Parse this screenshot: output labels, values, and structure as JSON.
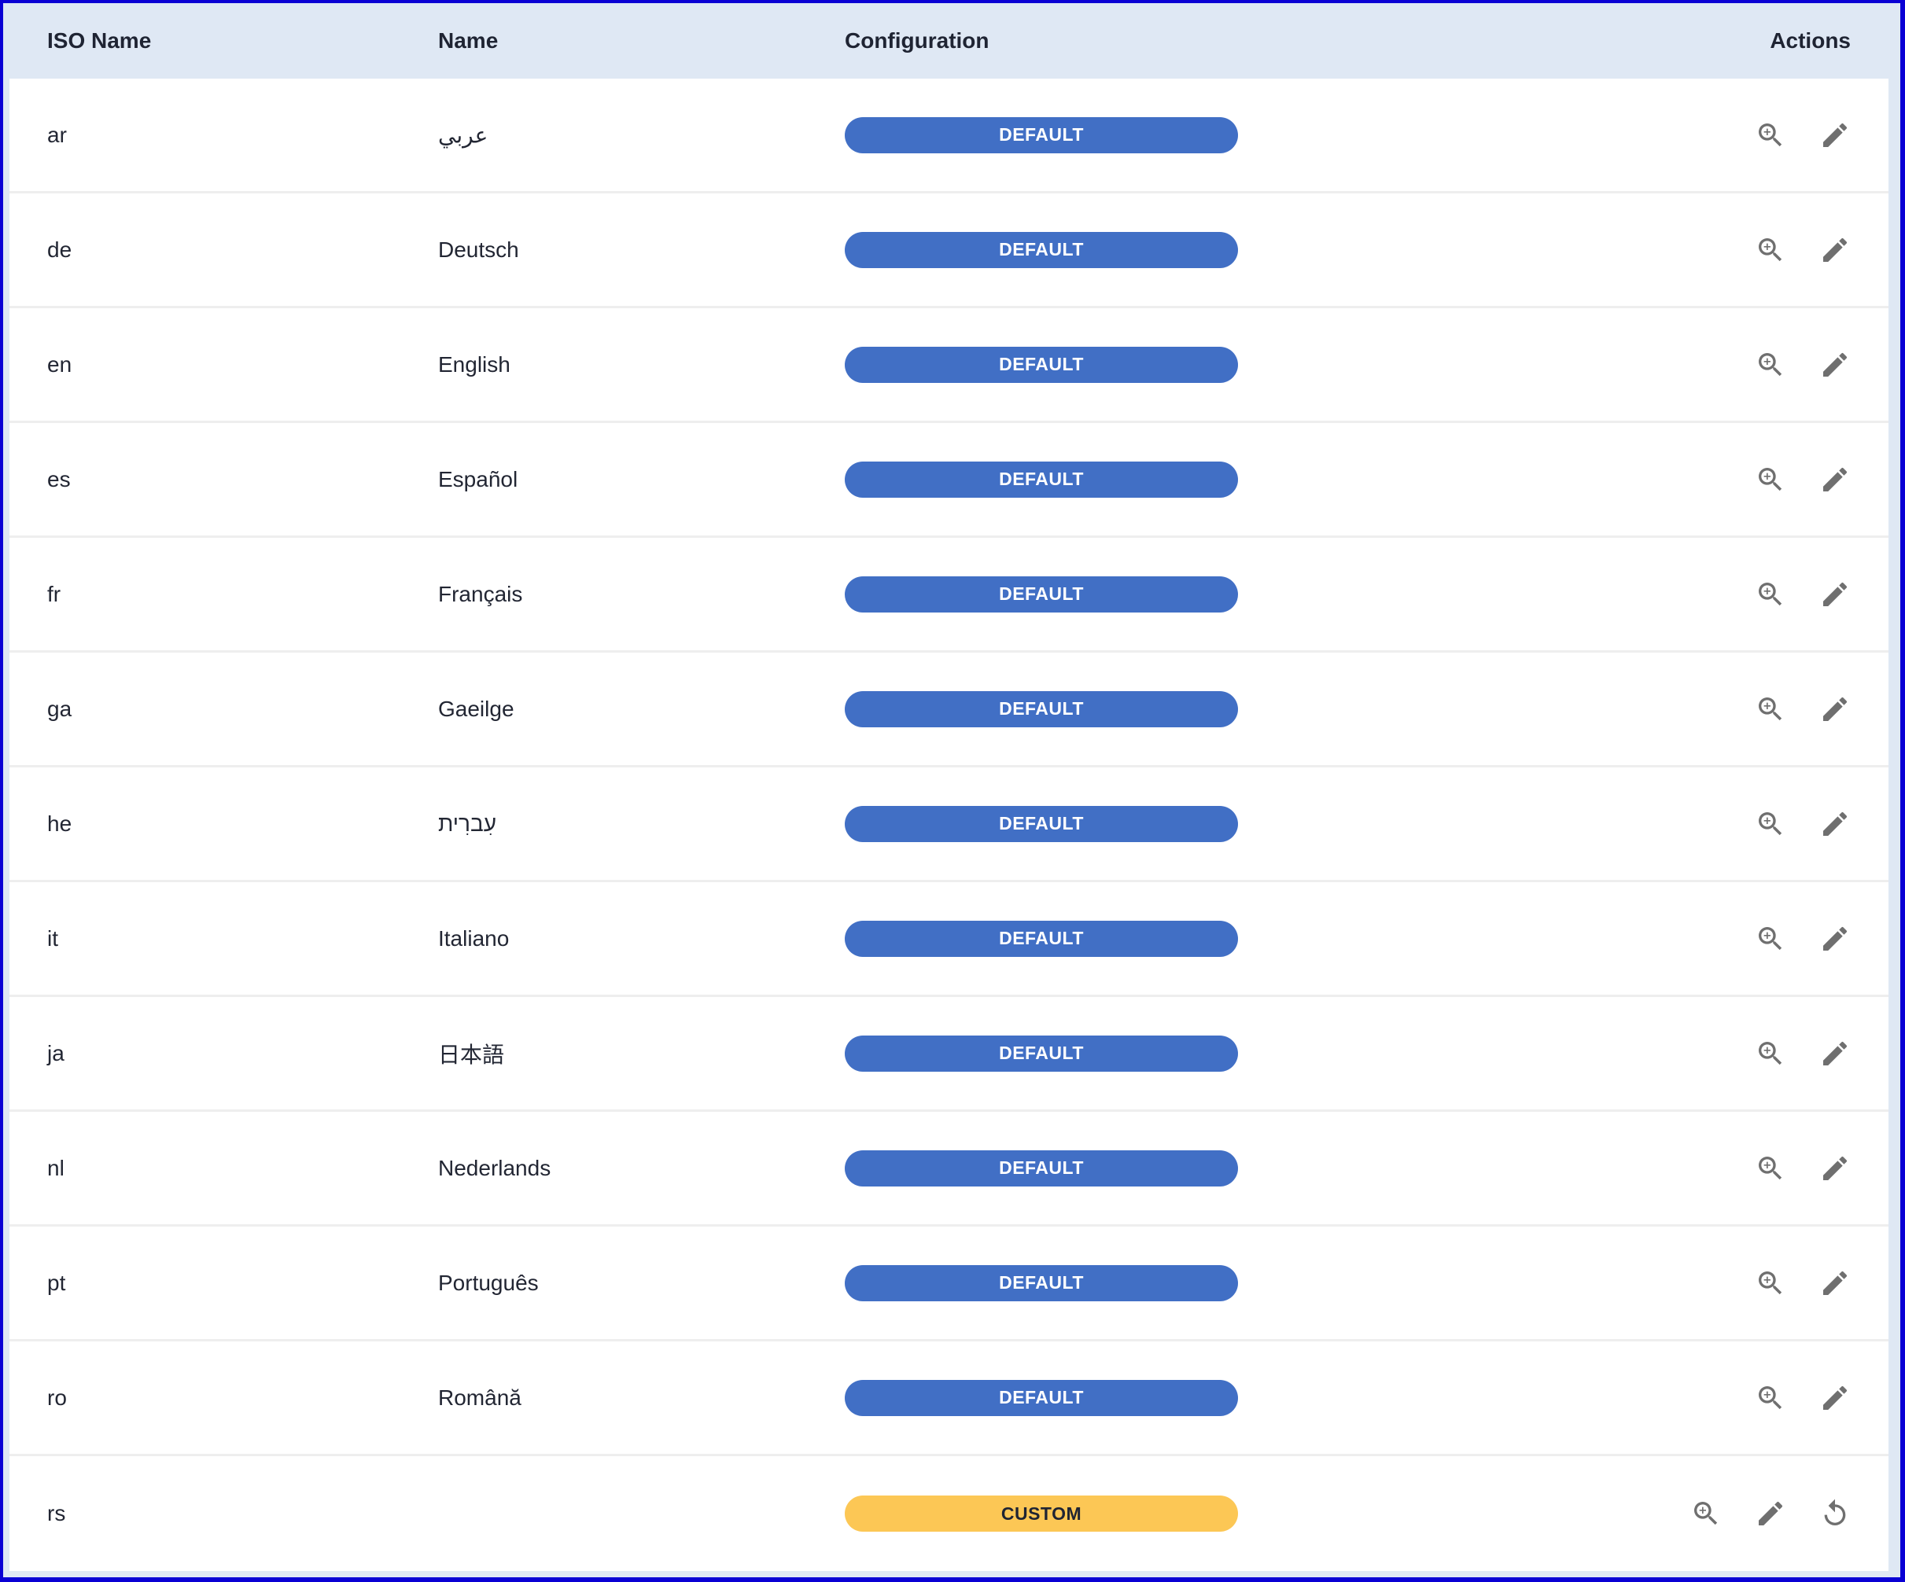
{
  "colors": {
    "default_badge": "#416fc5",
    "custom_badge": "#fcc755",
    "icon": "#6f6f6f",
    "header_bg": "#dfe8f4",
    "frame": "#0a00d4"
  },
  "header": {
    "iso": "ISO Name",
    "name": "Name",
    "configuration": "Configuration",
    "actions": "Actions"
  },
  "rows": [
    {
      "iso": "ar",
      "name": "عربي",
      "config": "DEFAULT"
    },
    {
      "iso": "de",
      "name": "Deutsch",
      "config": "DEFAULT"
    },
    {
      "iso": "en",
      "name": "English",
      "config": "DEFAULT"
    },
    {
      "iso": "es",
      "name": "Español",
      "config": "DEFAULT"
    },
    {
      "iso": "fr",
      "name": "Français",
      "config": "DEFAULT"
    },
    {
      "iso": "ga",
      "name": "Gaeilge",
      "config": "DEFAULT"
    },
    {
      "iso": "he",
      "name": "עִברִית",
      "config": "DEFAULT"
    },
    {
      "iso": "it",
      "name": "Italiano",
      "config": "DEFAULT"
    },
    {
      "iso": "ja",
      "name": "日本語",
      "config": "DEFAULT"
    },
    {
      "iso": "nl",
      "name": "Nederlands",
      "config": "DEFAULT"
    },
    {
      "iso": "pt",
      "name": "Português",
      "config": "DEFAULT"
    },
    {
      "iso": "ro",
      "name": "Română",
      "config": "DEFAULT"
    },
    {
      "iso": "rs",
      "name": "",
      "config": "CUSTOM",
      "actions": [
        "zoom-in-icon",
        "pencil-icon",
        "reset-icon"
      ]
    }
  ],
  "default_actions": [
    "zoom-in-icon",
    "pencil-icon"
  ]
}
